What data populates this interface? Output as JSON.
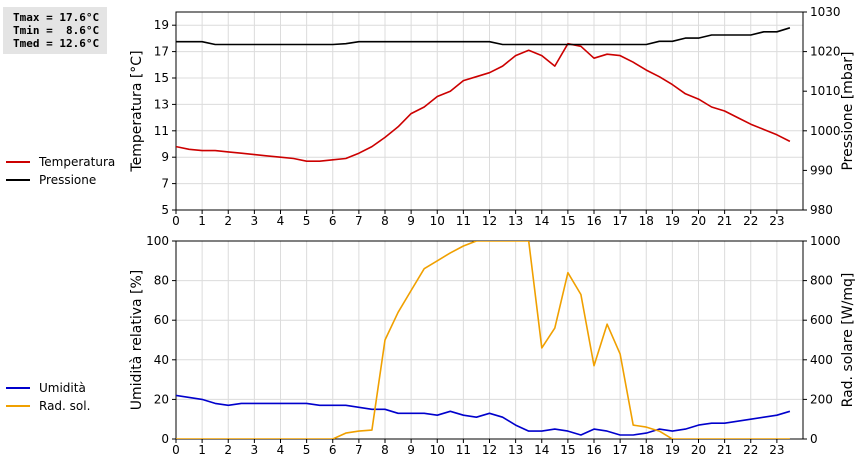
{
  "stats": {
    "tmax": "Tmax = 17.6°C",
    "tmin": "Tmin =  8.6°C",
    "tmed": "Tmed = 12.6°C"
  },
  "chart_data": [
    {
      "type": "line",
      "x_ticks": [
        "0",
        "1",
        "2",
        "3",
        "4",
        "5",
        "6",
        "7",
        "8",
        "9",
        "10",
        "11",
        "12",
        "13",
        "14",
        "15",
        "16",
        "17",
        "18",
        "19",
        "20",
        "21",
        "22",
        "23"
      ],
      "xlim": [
        0,
        24
      ],
      "ylabel_left": "Temperatura [°C]",
      "ylim_left": [
        5,
        20
      ],
      "yticks_left": [
        "5",
        "7",
        "9",
        "11",
        "13",
        "15",
        "17",
        "19"
      ],
      "ylabel_right": "Pressione [mbar]",
      "ylim_right": [
        980,
        1030
      ],
      "yticks_right": [
        "980",
        "990",
        "1000",
        "1010",
        "1020",
        "1030"
      ],
      "grid": true,
      "legend_position": "left",
      "series": [
        {
          "name": "Temperatura",
          "color": "#cc0000",
          "axis": "left",
          "x": [
            0,
            0.5,
            1,
            1.5,
            2,
            2.5,
            3,
            3.5,
            4,
            4.5,
            5,
            5.5,
            6,
            6.5,
            7,
            7.5,
            8,
            8.5,
            9,
            9.5,
            10,
            10.5,
            11,
            11.5,
            12,
            12.5,
            13,
            13.5,
            14,
            14.5,
            15,
            15.5,
            16,
            16.5,
            17,
            17.5,
            18,
            18.5,
            19,
            19.5,
            20,
            20.5,
            21,
            21.5,
            22,
            22.5,
            23,
            23.5
          ],
          "y": [
            9.8,
            9.6,
            9.5,
            9.5,
            9.4,
            9.3,
            9.2,
            9.1,
            9.0,
            8.9,
            8.7,
            8.7,
            8.8,
            8.9,
            9.3,
            9.8,
            10.5,
            11.3,
            12.3,
            12.8,
            13.6,
            14.0,
            14.8,
            15.1,
            15.4,
            15.9,
            16.7,
            17.1,
            16.7,
            15.9,
            17.6,
            17.4,
            16.5,
            16.8,
            16.7,
            16.2,
            15.6,
            15.1,
            14.5,
            13.8,
            13.4,
            12.8,
            12.5,
            12.0,
            11.5,
            11.1,
            10.7,
            10.2
          ]
        },
        {
          "name": "Pressione",
          "color": "#000000",
          "axis": "right",
          "x": [
            0,
            1,
            1.5,
            2,
            6,
            6.5,
            7,
            12,
            12.5,
            18,
            18.5,
            19,
            19.5,
            20,
            20.5,
            21,
            22,
            22.5,
            23,
            23.5
          ],
          "y": [
            1022.5,
            1022.5,
            1021.8,
            1021.8,
            1021.8,
            1022.0,
            1022.5,
            1022.5,
            1021.8,
            1021.8,
            1022.6,
            1022.6,
            1023.4,
            1023.4,
            1024.2,
            1024.2,
            1024.2,
            1025.0,
            1025.0,
            1026.0
          ]
        }
      ]
    },
    {
      "type": "line",
      "x_ticks": [
        "0",
        "1",
        "2",
        "3",
        "4",
        "5",
        "6",
        "7",
        "8",
        "9",
        "10",
        "11",
        "12",
        "13",
        "14",
        "15",
        "16",
        "17",
        "18",
        "19",
        "20",
        "21",
        "22",
        "23"
      ],
      "xlim": [
        0,
        24
      ],
      "ylabel_left": "Umidità relativa [%]",
      "ylim_left": [
        0,
        100
      ],
      "yticks_left": [
        "0",
        "20",
        "40",
        "60",
        "80",
        "100"
      ],
      "ylabel_right": "Rad. solare [W/mq]",
      "ylim_right": [
        0,
        1000
      ],
      "yticks_right": [
        "0",
        "200",
        "400",
        "600",
        "800",
        "1000"
      ],
      "grid": true,
      "legend_position": "left",
      "series": [
        {
          "name": "Umidità",
          "color": "#0000cc",
          "axis": "left",
          "x": [
            0,
            0.5,
            1,
            1.5,
            2,
            2.5,
            3,
            3.5,
            4,
            4.5,
            5,
            5.5,
            6,
            6.5,
            7,
            7.5,
            8,
            8.5,
            9,
            9.5,
            10,
            10.5,
            11,
            11.5,
            12,
            12.5,
            13,
            13.5,
            14,
            14.5,
            15,
            15.5,
            16,
            16.5,
            17,
            17.5,
            18,
            18.5,
            19,
            19.5,
            20,
            20.5,
            21,
            21.5,
            22,
            22.5,
            23,
            23.5
          ],
          "y": [
            22,
            21,
            20,
            18,
            17,
            18,
            18,
            18,
            18,
            18,
            18,
            17,
            17,
            17,
            16,
            15,
            15,
            13,
            13,
            13,
            12,
            14,
            12,
            11,
            13,
            11,
            7,
            4,
            4,
            5,
            4,
            2,
            5,
            4,
            2,
            2,
            3,
            5,
            4,
            5,
            7,
            8,
            8,
            9,
            10,
            11,
            12,
            14
          ]
        },
        {
          "name": "Rad. sol.",
          "color": "#f0a000",
          "axis": "right",
          "x": [
            0,
            6,
            6.5,
            7,
            7.5,
            8,
            8.5,
            9,
            9.5,
            10,
            10.5,
            11,
            11.5,
            13.5,
            14,
            14.5,
            15,
            15.5,
            16,
            16.5,
            17,
            17.5,
            18,
            18.5,
            19,
            23.5
          ],
          "y": [
            0,
            0,
            30,
            40,
            45,
            500,
            640,
            750,
            860,
            900,
            940,
            975,
            1000,
            1000,
            460,
            560,
            840,
            730,
            370,
            580,
            430,
            70,
            60,
            40,
            0,
            0
          ]
        }
      ]
    }
  ]
}
